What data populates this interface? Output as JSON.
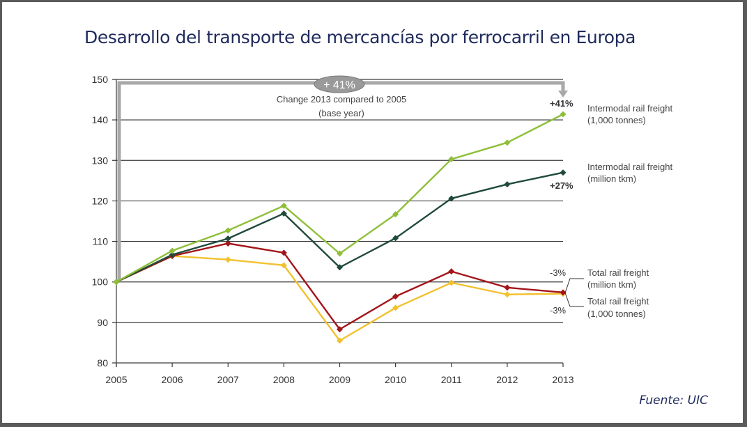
{
  "title": "Desarrollo del transporte de mercancías por ferrocarril en Europa",
  "source": "Fuente: UIC",
  "chart_data": {
    "type": "line",
    "title": "Desarrollo del transporte de mercancías por ferrocarril en Europa",
    "xlabel": "",
    "ylabel": "",
    "x": [
      2005,
      2006,
      2007,
      2008,
      2009,
      2010,
      2011,
      2012,
      2013
    ],
    "ylim": [
      80,
      150
    ],
    "yticks": [
      80,
      90,
      100,
      110,
      120,
      130,
      140,
      150
    ],
    "grid": true,
    "legend": "right",
    "series": [
      {
        "name_line1": "Intermodal rail freight",
        "name_line2": "(1,000 tonnes)",
        "color": "#8fbf3a",
        "values": [
          100,
          107.7,
          112.7,
          118.8,
          107.0,
          116.7,
          130.3,
          134.4,
          141.4
        ],
        "change_label": "+41%"
      },
      {
        "name_line1": "Intermodal rail freight",
        "name_line2": "(million tkm)",
        "color": "#1f4a3a",
        "values": [
          100,
          106.7,
          110.7,
          116.9,
          103.6,
          110.8,
          120.6,
          124.1,
          127.0
        ],
        "change_label": "+27%"
      },
      {
        "name_line1": "Total rail freight",
        "name_line2": "(million tkm)",
        "color": "#a3151a",
        "values": [
          100,
          106.4,
          109.5,
          107.2,
          88.3,
          96.4,
          102.6,
          98.6,
          97.4
        ],
        "change_label": "-3%"
      },
      {
        "name_line1": "Total rail freight",
        "name_line2": "(1,000 tonnes)",
        "color": "#f2c12e",
        "values": [
          100,
          106.4,
          105.5,
          104.1,
          85.5,
          93.6,
          99.8,
          96.9,
          97.1
        ],
        "change_label": "-3%"
      }
    ],
    "annotations": {
      "badge": "+ 41%",
      "line1": "Change 2013 compared to 2005",
      "line2": "(base year)"
    }
  }
}
